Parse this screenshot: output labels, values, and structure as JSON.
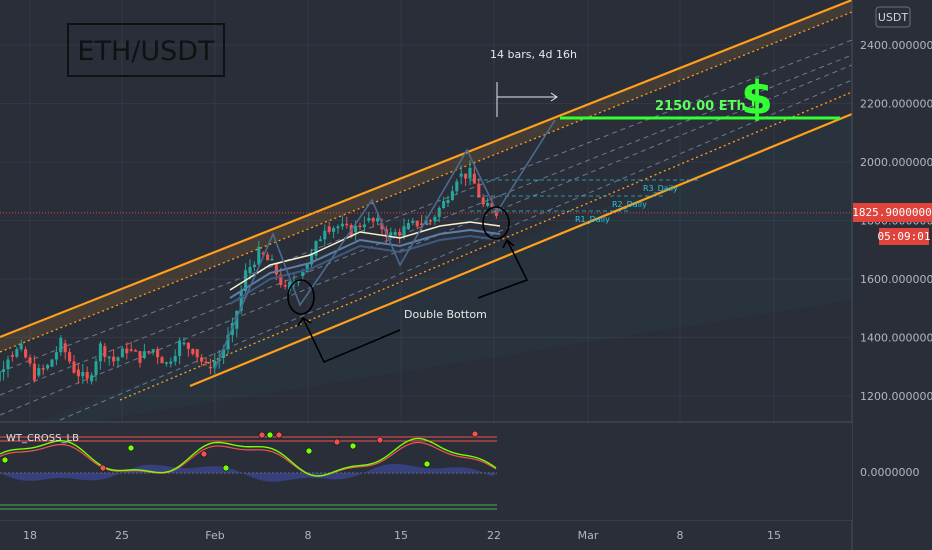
{
  "title": "ETH/USDT",
  "currency": "USDT",
  "colors": {
    "background": "#2a2e39",
    "channel": "#ff9f1c",
    "bull": "#26a69a",
    "bear": "#ef5350",
    "target": "#33ff33",
    "price_line": "#e0423c"
  },
  "chart_data": {
    "type": "candlestick",
    "x": [
      "Jan 14",
      "Jan 15",
      "Jan 16",
      "Jan 17",
      "Jan 18",
      "Jan 19",
      "Jan 20",
      "Jan 21",
      "Jan 22",
      "Jan 23",
      "Jan 24",
      "Jan 25",
      "Jan 26",
      "Jan 27",
      "Jan 28",
      "Jan 29",
      "Jan 30",
      "Jan 31",
      "Feb 1",
      "Feb 2",
      "Feb 3",
      "Feb 4",
      "Feb 5",
      "Feb 6",
      "Feb 7",
      "Feb 8",
      "Feb 9",
      "Feb 10",
      "Feb 11",
      "Feb 12",
      "Feb 13",
      "Feb 14",
      "Feb 15",
      "Feb 16",
      "Feb 17",
      "Feb 18",
      "Feb 19",
      "Feb 20",
      "Feb 21",
      "Feb 22"
    ],
    "close": [
      1200,
      1250,
      1340,
      1360,
      1270,
      1300,
      1380,
      1290,
      1250,
      1370,
      1320,
      1360,
      1330,
      1360,
      1310,
      1380,
      1360,
      1300,
      1330,
      1430,
      1620,
      1690,
      1650,
      1560,
      1610,
      1680,
      1780,
      1780,
      1760,
      1800,
      1790,
      1750,
      1770,
      1790,
      1800,
      1860,
      1950,
      1960,
      1850,
      1826
    ],
    "x_tick_labels": [
      "18",
      "25",
      "Feb",
      "8",
      "15",
      "22",
      "Mar",
      "8",
      "15"
    ],
    "y_tick_labels": [
      "2400.0000000",
      "2200.0000000",
      "2000.0000000",
      "1800.0000000",
      "1600.0000000",
      "1400.0000000",
      "1200.0000000"
    ],
    "ylim": [
      1100,
      2550
    ],
    "last_price": "1825.9000000",
    "countdown": "05:09:01",
    "target_label": "2150.00 ETh !",
    "target_symbol": "$",
    "target_value": 2150,
    "pattern_label": "Double Bottom",
    "measure_label": "14 bars, 4d 16h",
    "pivot_labels": [
      "R3_Daily",
      "R2_Daily",
      "R1_Daily"
    ],
    "indicator": {
      "name": "WT_CROSS_LB",
      "y_tick_label": "0.0000000"
    }
  }
}
